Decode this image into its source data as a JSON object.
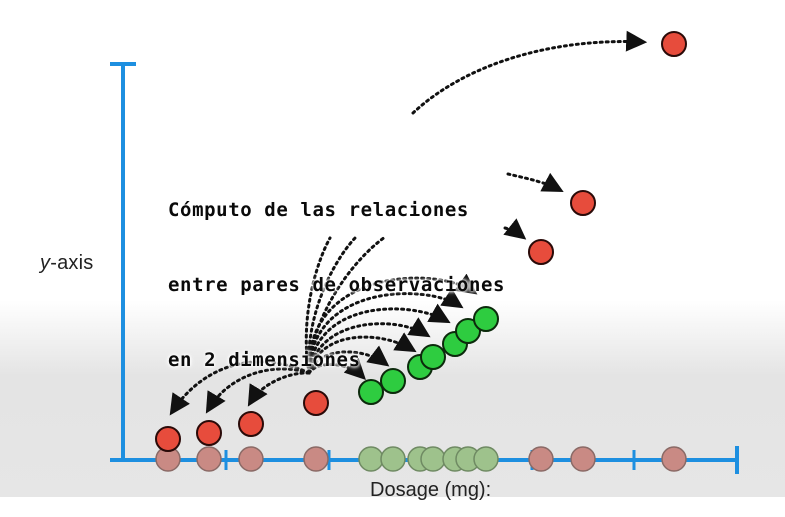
{
  "caption": {
    "line1": "Cómputo de las relaciones",
    "line2": "entre pares de observaciones",
    "line3": "en 2 dimensiones"
  },
  "axes": {
    "y_label_italic": "y",
    "y_label_rest": "-axis",
    "x_label": "Dosage (mg):"
  },
  "colors": {
    "axis": "#1d8fe0",
    "red_point": "#e74c3c",
    "green_point": "#2ecc40",
    "faded_red": "#c98a84",
    "faded_green": "#9ec28c"
  }
}
